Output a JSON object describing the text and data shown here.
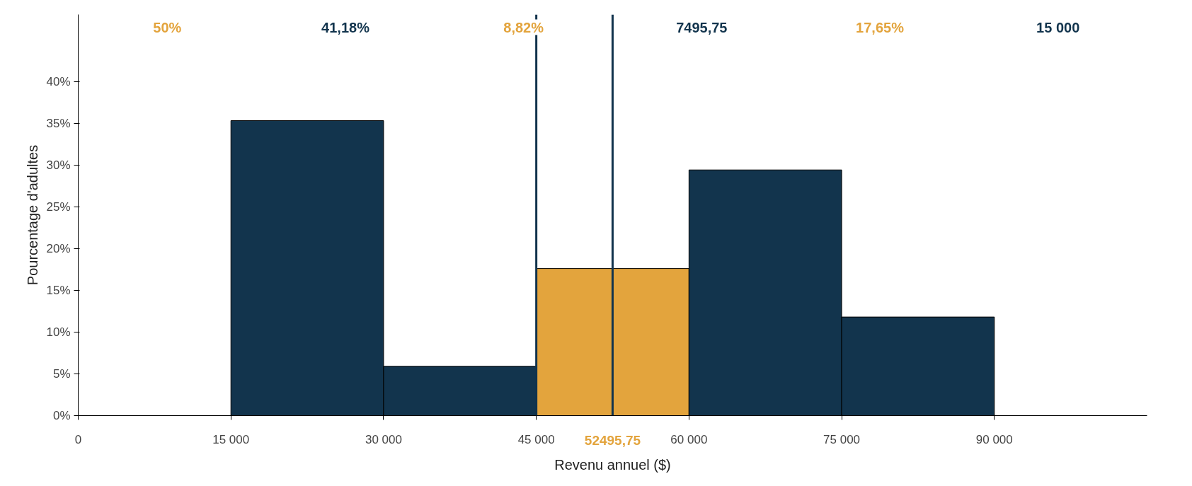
{
  "chart_data": {
    "type": "histogram",
    "xlabel": "Revenu annuel ($)",
    "ylabel": "Pourcentage d'adultes",
    "bins": [
      15000,
      30000,
      45000,
      60000,
      75000,
      90000
    ],
    "values": [
      35.3,
      5.9,
      17.6,
      29.4,
      11.8
    ],
    "colors": [
      "#12344d",
      "#12344d",
      "#e3a43d",
      "#12344d",
      "#12344d"
    ],
    "xlim": [
      0,
      105000
    ],
    "ylim": [
      0,
      48
    ],
    "xticks": [
      0,
      {
        "value": 15000,
        "label": "15 000"
      },
      {
        "value": 30000,
        "label": "30 000"
      },
      {
        "value": 45000,
        "label": "45 000"
      },
      {
        "value": 60000,
        "label": "60 000"
      },
      {
        "value": 75000,
        "label": "75 000"
      },
      {
        "value": 90000,
        "label": "90 000"
      }
    ],
    "yticks": [
      {
        "value": 0,
        "label": "0%"
      },
      {
        "value": 5,
        "label": "5%"
      },
      {
        "value": 10,
        "label": "10%"
      },
      {
        "value": 15,
        "label": "15%"
      },
      {
        "value": 20,
        "label": "20%"
      },
      {
        "value": 25,
        "label": "25%"
      },
      {
        "value": 30,
        "label": "30%"
      },
      {
        "value": 35,
        "label": "35%"
      },
      {
        "value": 40,
        "label": "40%"
      }
    ],
    "ref_lines": [
      {
        "axis": "x",
        "value": 45000,
        "color": "#12344d"
      },
      {
        "axis": "x",
        "value": 52495.75,
        "label": "52495,75",
        "color": "#12344d"
      }
    ],
    "annotations": [
      "50%",
      "41,18%",
      "8,82%",
      "7495,75",
      "17,65%",
      "15 000"
    ],
    "grid": false
  }
}
